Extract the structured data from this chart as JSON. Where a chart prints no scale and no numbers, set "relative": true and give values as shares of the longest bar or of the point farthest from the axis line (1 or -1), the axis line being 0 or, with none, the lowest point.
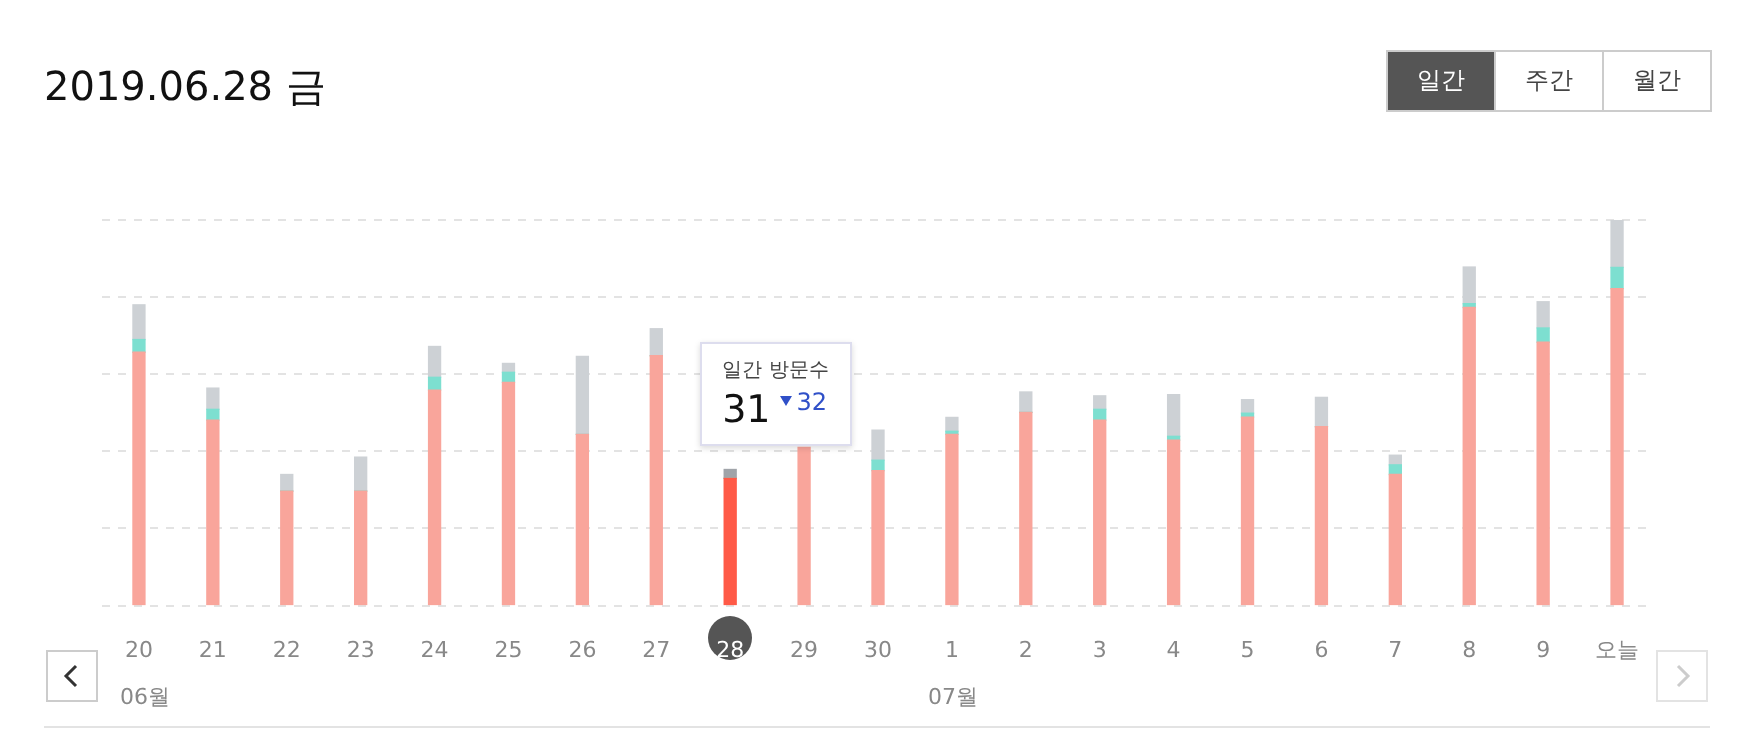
{
  "chart_data": {
    "type": "bar",
    "title": "2019.06.28 금",
    "relative": true,
    "stacked": true,
    "grid": "y",
    "categories": [
      "20",
      "21",
      "22",
      "23",
      "24",
      "25",
      "26",
      "27",
      "28",
      "29",
      "30",
      "1",
      "2",
      "3",
      "4",
      "5",
      "6",
      "7",
      "8",
      "9",
      "오늘"
    ],
    "series": [
      {
        "colors": [
          "#f9a59b",
          "#f9a59b",
          "#f9a59b",
          "#f9a59b",
          "#f9a59b",
          "#f9a59b",
          "#f9a59b",
          "#f9a59b",
          "#ff5a47",
          "#f9a59b",
          "#f9a59b",
          "#f9a59b",
          "#f9a59b",
          "#f9a59b",
          "#f9a59b",
          "#f9a59b",
          "#f9a59b",
          "#f9a59b",
          "#f9a59b",
          "#f9a59b",
          "#f9a59b"
        ],
        "values": [
          0.657,
          0.481,
          0.297,
          0.297,
          0.559,
          0.579,
          0.444,
          0.648,
          0.33,
          0.41,
          0.35,
          0.444,
          0.501,
          0.481,
          0.429,
          0.489,
          0.464,
          0.34,
          0.773,
          0.683,
          0.822
        ]
      },
      {
        "color": "#7ddfd0",
        "values": [
          0.033,
          0.028,
          0,
          0,
          0.033,
          0.026,
          0,
          0,
          0,
          null,
          0.027,
          0.008,
          0,
          0.028,
          0.01,
          0.01,
          0,
          0.025,
          0.01,
          0.037,
          0.055
        ]
      },
      {
        "colors": [
          "#cdd1d5",
          "#cdd1d5",
          "#cdd1d5",
          "#cdd1d5",
          "#cdd1d5",
          "#cdd1d5",
          "#cdd1d5",
          "#cdd1d5",
          "#a0a4a9",
          "#cdd1d5",
          "#cdd1d5",
          "#cdd1d5",
          "#cdd1d5",
          "#cdd1d5",
          "#cdd1d5",
          "#cdd1d5",
          "#cdd1d5",
          "#cdd1d5",
          "#cdd1d5",
          "#cdd1d5",
          "#cdd1d5"
        ],
        "values": [
          0.09,
          0.055,
          0.043,
          0.088,
          0.08,
          0.023,
          0.202,
          0.07,
          0.023,
          null,
          0.078,
          0.036,
          0.053,
          0.035,
          0.108,
          0.035,
          0.076,
          0.025,
          0.095,
          0.068,
          0.123
        ]
      }
    ],
    "annotations": [
      "일간",
      "주간",
      "월간",
      "일간 방문수",
      {
        "text": "31",
        "x": "28",
        "y": 0.353
      },
      "32",
      "06월",
      "07월"
    ]
  }
}
